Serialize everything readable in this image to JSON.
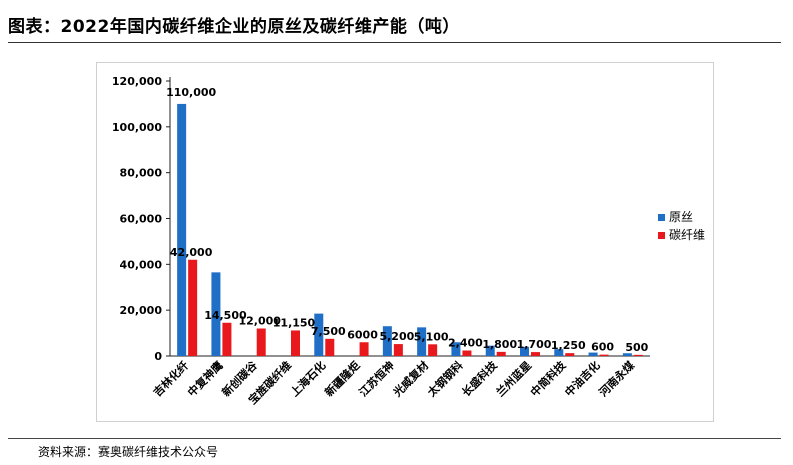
{
  "title": "图表：2022年国内碳纤维企业的原丝及碳纤维产能（吨）",
  "source": "资料来源：赛奥碳纤维技术公众号",
  "chart_data": {
    "type": "bar",
    "categories": [
      "吉林化纤",
      "中复神鹰",
      "新创碳谷",
      "宝旌碳纤维",
      "上海石化",
      "新疆隆炬",
      "江苏恒神",
      "光威复材",
      "太钢钢科",
      "长盛科技",
      "兰州蓝星",
      "中简科技",
      "中油吉化",
      "河南永煤"
    ],
    "series": [
      {
        "name": "原丝",
        "color": "#1f6fc6",
        "values": [
          110000,
          36500,
          null,
          null,
          18500,
          null,
          13000,
          12500,
          6000,
          4500,
          4000,
          3000,
          1500,
          1200
        ]
      },
      {
        "name": "碳纤维",
        "color": "#e8181c",
        "values": [
          42000,
          14500,
          12000,
          11150,
          7500,
          6000,
          5200,
          5100,
          2400,
          1800,
          1700,
          1250,
          600,
          500
        ]
      }
    ],
    "data_labels": [
      "110,000",
      "42,000",
      "14,500",
      "12,000",
      "11,150",
      "7,500",
      "6000",
      "5,200",
      "5,100",
      "2,400",
      "1,800",
      "1,700",
      "1,250",
      "600",
      "500"
    ],
    "yticks": [
      "0",
      "20,000",
      "40,000",
      "60,000",
      "80,000",
      "100,000",
      "120,000"
    ],
    "ylim": [
      0,
      120000
    ],
    "legend_position": "right",
    "grid": false
  }
}
